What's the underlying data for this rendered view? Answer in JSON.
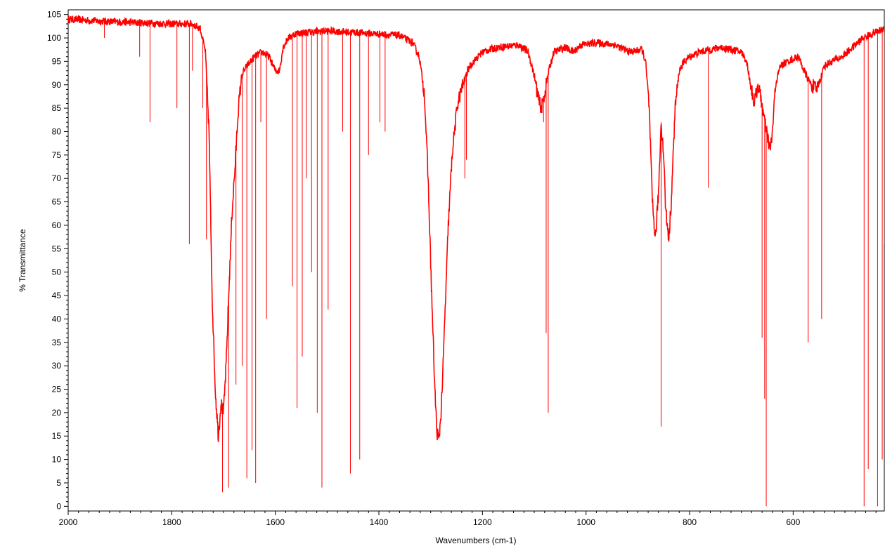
{
  "chart_data": {
    "type": "line",
    "xlabel": "Wavenumbers (cm-1)",
    "ylabel": "% Transmittance",
    "xlim": [
      2000,
      424
    ],
    "ylim": [
      -1,
      106
    ],
    "x_ticks": [
      2000,
      1800,
      1600,
      1400,
      1200,
      1000,
      800,
      600
    ],
    "y_ticks": [
      0,
      5,
      10,
      15,
      20,
      25,
      30,
      35,
      40,
      45,
      50,
      55,
      60,
      65,
      70,
      75,
      80,
      85,
      90,
      95,
      100,
      105
    ],
    "grid": false,
    "legend": "none",
    "series_color": "#ff0000",
    "baseline": [
      [
        2000,
        104
      ],
      [
        1920,
        103.5
      ],
      [
        1800,
        103
      ],
      [
        1760,
        103
      ],
      [
        1745,
        102
      ],
      [
        1735,
        97
      ],
      [
        1728,
        80
      ],
      [
        1722,
        45
      ],
      [
        1716,
        25
      ],
      [
        1710,
        15
      ],
      [
        1705,
        22
      ],
      [
        1700,
        20
      ],
      [
        1695,
        30
      ],
      [
        1690,
        45
      ],
      [
        1684,
        62
      ],
      [
        1678,
        72
      ],
      [
        1672,
        84
      ],
      [
        1665,
        92
      ],
      [
        1655,
        94
      ],
      [
        1640,
        96
      ],
      [
        1625,
        97
      ],
      [
        1612,
        96
      ],
      [
        1600,
        93
      ],
      [
        1592,
        93
      ],
      [
        1585,
        98
      ],
      [
        1575,
        100
      ],
      [
        1560,
        101
      ],
      [
        1500,
        101.5
      ],
      [
        1420,
        101
      ],
      [
        1360,
        100.5
      ],
      [
        1335,
        99
      ],
      [
        1322,
        96
      ],
      [
        1312,
        88
      ],
      [
        1305,
        70
      ],
      [
        1298,
        45
      ],
      [
        1292,
        25
      ],
      [
        1288,
        16
      ],
      [
        1284,
        14
      ],
      [
        1280,
        20
      ],
      [
        1276,
        30
      ],
      [
        1272,
        42
      ],
      [
        1266,
        60
      ],
      [
        1258,
        76
      ],
      [
        1248,
        86
      ],
      [
        1238,
        90
      ],
      [
        1225,
        94
      ],
      [
        1200,
        97
      ],
      [
        1170,
        98
      ],
      [
        1130,
        98.5
      ],
      [
        1112,
        97
      ],
      [
        1100,
        92
      ],
      [
        1092,
        87
      ],
      [
        1086,
        85
      ],
      [
        1080,
        88
      ],
      [
        1072,
        93
      ],
      [
        1062,
        97
      ],
      [
        1040,
        98
      ],
      [
        1025,
        97
      ],
      [
        1010,
        98.5
      ],
      [
        980,
        99
      ],
      [
        945,
        98.5
      ],
      [
        915,
        97
      ],
      [
        892,
        97.5
      ],
      [
        885,
        95
      ],
      [
        878,
        85
      ],
      [
        872,
        65
      ],
      [
        866,
        57
      ],
      [
        860,
        67
      ],
      [
        855,
        82
      ],
      [
        850,
        75
      ],
      [
        846,
        63
      ],
      [
        840,
        57
      ],
      [
        835,
        66
      ],
      [
        828,
        85
      ],
      [
        820,
        93
      ],
      [
        810,
        95
      ],
      [
        800,
        96
      ],
      [
        780,
        97
      ],
      [
        740,
        98
      ],
      [
        700,
        97
      ],
      [
        690,
        95
      ],
      [
        682,
        90
      ],
      [
        675,
        86
      ],
      [
        668,
        90
      ],
      [
        662,
        87
      ],
      [
        655,
        82
      ],
      [
        648,
        78
      ],
      [
        644,
        76
      ],
      [
        640,
        80
      ],
      [
        634,
        90
      ],
      [
        625,
        94
      ],
      [
        610,
        95
      ],
      [
        590,
        96
      ],
      [
        575,
        92
      ],
      [
        565,
        90
      ],
      [
        555,
        89
      ],
      [
        548,
        91
      ],
      [
        540,
        94
      ],
      [
        525,
        95
      ],
      [
        505,
        96
      ],
      [
        485,
        98
      ],
      [
        465,
        100
      ],
      [
        445,
        101
      ],
      [
        424,
        102
      ]
    ],
    "spikes": [
      [
        1930,
        100
      ],
      [
        1862,
        96
      ],
      [
        1842,
        82
      ],
      [
        1790,
        85
      ],
      [
        1766,
        56
      ],
      [
        1760,
        93
      ],
      [
        1740,
        85
      ],
      [
        1733,
        57
      ],
      [
        1702,
        3
      ],
      [
        1690,
        4
      ],
      [
        1676,
        26
      ],
      [
        1664,
        30
      ],
      [
        1655,
        6
      ],
      [
        1645,
        12
      ],
      [
        1638,
        5
      ],
      [
        1628,
        82
      ],
      [
        1617,
        40
      ],
      [
        1567,
        47
      ],
      [
        1558,
        21
      ],
      [
        1548,
        32
      ],
      [
        1540,
        70
      ],
      [
        1530,
        50
      ],
      [
        1519,
        20
      ],
      [
        1510,
        4
      ],
      [
        1498,
        42
      ],
      [
        1470,
        80
      ],
      [
        1455,
        7
      ],
      [
        1437,
        10
      ],
      [
        1420,
        75
      ],
      [
        1398,
        82
      ],
      [
        1388,
        80
      ],
      [
        1234,
        70
      ],
      [
        1231,
        74
      ],
      [
        1082,
        82
      ],
      [
        1077,
        37
      ],
      [
        1073,
        20
      ],
      [
        855,
        17
      ],
      [
        764,
        68
      ],
      [
        660,
        36
      ],
      [
        655,
        23
      ],
      [
        652,
        0
      ],
      [
        571,
        35
      ],
      [
        545,
        40
      ],
      [
        463,
        0
      ],
      [
        455,
        8
      ],
      [
        437,
        0
      ],
      [
        428,
        10
      ],
      [
        424,
        56
      ]
    ]
  }
}
